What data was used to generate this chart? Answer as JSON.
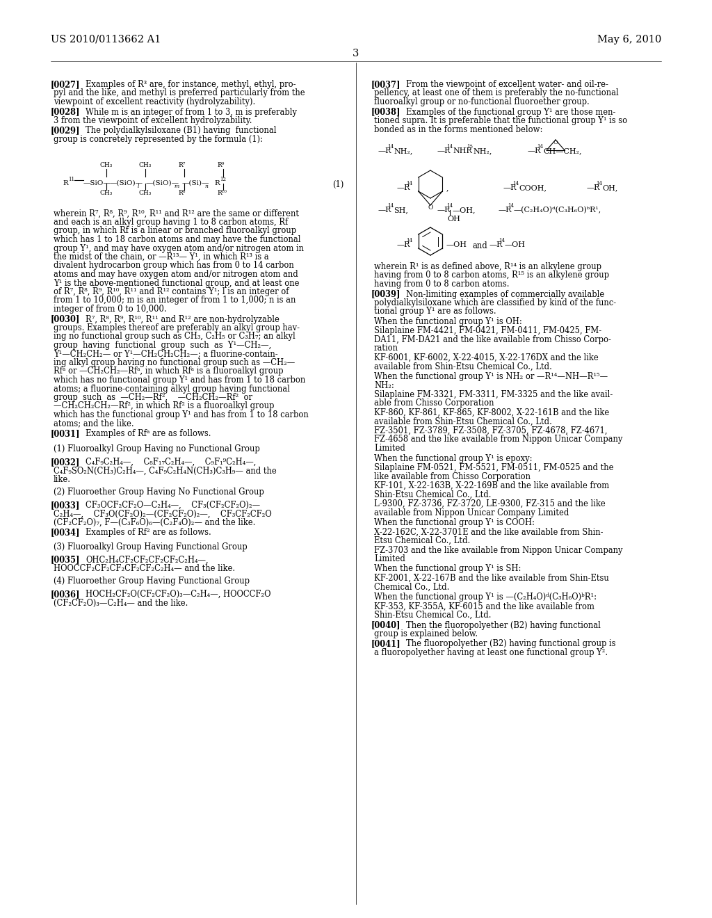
{
  "bg": "#ffffff",
  "header_left": "US 2010/0113662 A1",
  "header_right": "May 6, 2010",
  "page_num": "3"
}
